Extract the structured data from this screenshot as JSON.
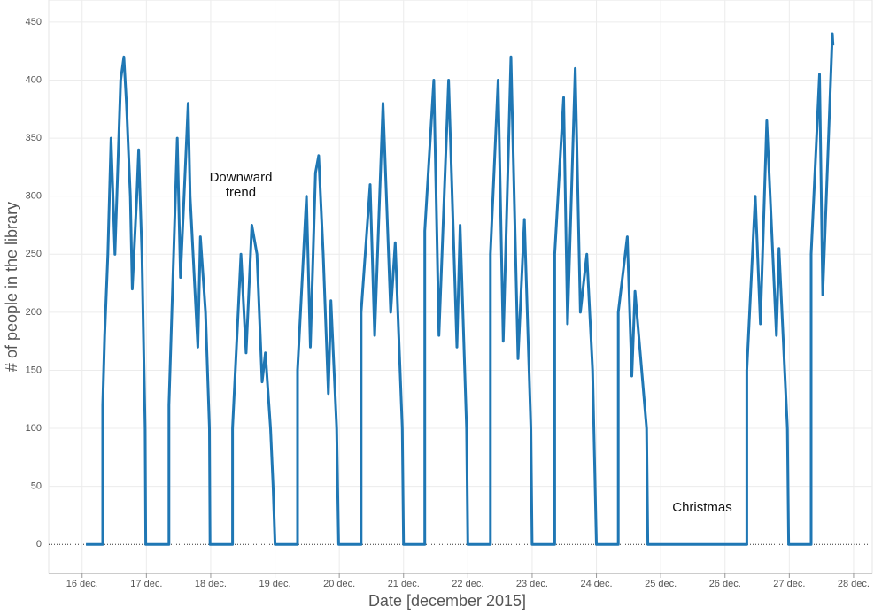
{
  "chart_data": {
    "type": "line",
    "x_label": "Date [december 2015]",
    "y_label": "# of people in the library",
    "annotations": [
      "Downward trend",
      "Christmas"
    ],
    "color": "#1f77b4",
    "grid": true,
    "xlim": [
      15.48,
      28.29
    ],
    "ylim": [
      -25,
      469
    ],
    "xticks": [
      {
        "value": 16,
        "label": "16 dec."
      },
      {
        "value": 17,
        "label": "17 dec."
      },
      {
        "value": 18,
        "label": "18 dec."
      },
      {
        "value": 19,
        "label": "19 dec."
      },
      {
        "value": 20,
        "label": "20 dec."
      },
      {
        "value": 21,
        "label": "21 dec."
      },
      {
        "value": 22,
        "label": "22 dec."
      },
      {
        "value": 23,
        "label": "23 dec."
      },
      {
        "value": 24,
        "label": "24 dec."
      },
      {
        "value": 25,
        "label": "25 dec."
      },
      {
        "value": 26,
        "label": "26 dec."
      },
      {
        "value": 27,
        "label": "27 dec."
      },
      {
        "value": 28,
        "label": "28 dec."
      }
    ],
    "yticks": [
      0,
      50,
      100,
      150,
      200,
      250,
      300,
      350,
      400,
      450
    ],
    "x": [
      16.06,
      16.32,
      16.32,
      16.35,
      16.4,
      16.45,
      16.51,
      16.6,
      16.65,
      16.69,
      16.75,
      16.78,
      16.85,
      16.88,
      16.93,
      16.98,
      16.99,
      17.35,
      17.35,
      17.48,
      17.53,
      17.65,
      17.68,
      17.8,
      17.84,
      17.92,
      17.98,
      17.99,
      18.34,
      18.34,
      18.47,
      18.55,
      18.64,
      18.72,
      18.8,
      18.85,
      18.93,
      18.97,
      19.0,
      19.35,
      19.35,
      19.49,
      19.55,
      19.63,
      19.68,
      19.75,
      19.83,
      19.87,
      19.96,
      19.99,
      20.34,
      20.34,
      20.48,
      20.55,
      20.68,
      20.8,
      20.87,
      20.98,
      21.0,
      21.33,
      21.33,
      21.47,
      21.55,
      21.7,
      21.83,
      21.88,
      21.98,
      22.0,
      22.35,
      22.35,
      22.47,
      22.55,
      22.67,
      22.78,
      22.88,
      22.98,
      23.0,
      23.35,
      23.35,
      23.49,
      23.55,
      23.67,
      23.75,
      23.85,
      23.94,
      24.0,
      24.34,
      24.34,
      24.48,
      24.55,
      24.6,
      24.78,
      24.8,
      26.34,
      26.34,
      26.47,
      26.55,
      26.65,
      26.8,
      26.84,
      26.97,
      26.99,
      27.34,
      27.34,
      27.47,
      27.52,
      27.67,
      27.68
    ],
    "values": [
      0,
      0,
      120,
      180,
      250,
      350,
      250,
      400,
      420,
      380,
      300,
      220,
      300,
      340,
      250,
      100,
      0,
      0,
      120,
      350,
      230,
      380,
      300,
      170,
      265,
      200,
      100,
      0,
      0,
      100,
      250,
      165,
      275,
      250,
      140,
      165,
      100,
      50,
      0,
      0,
      150,
      300,
      170,
      320,
      335,
      250,
      130,
      210,
      100,
      0,
      0,
      200,
      310,
      180,
      380,
      200,
      260,
      100,
      0,
      0,
      270,
      400,
      180,
      400,
      170,
      275,
      100,
      0,
      0,
      250,
      400,
      175,
      420,
      160,
      280,
      100,
      0,
      0,
      250,
      385,
      190,
      410,
      200,
      250,
      150,
      0,
      0,
      200,
      265,
      145,
      218,
      100,
      0,
      0,
      150,
      300,
      190,
      365,
      180,
      255,
      100,
      0,
      0,
      250,
      405,
      215,
      440,
      430
    ]
  }
}
